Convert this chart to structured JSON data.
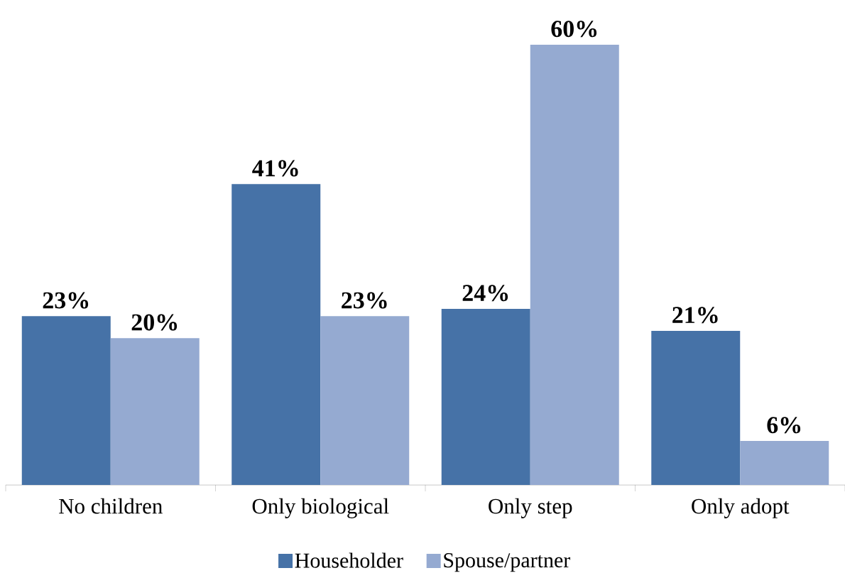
{
  "chart_data": {
    "type": "bar",
    "categories": [
      "No children",
      "Only biological",
      "Only step",
      "Only adopt"
    ],
    "series": [
      {
        "name": "Householder",
        "color": "#4672a7",
        "values": [
          23,
          41,
          24,
          21
        ],
        "value_labels": [
          "23%",
          "41%",
          "24%",
          "21%"
        ]
      },
      {
        "name": "Spouse/partner",
        "color": "#95aad1",
        "values": [
          20,
          23,
          60,
          6
        ],
        "value_labels": [
          "20%",
          "23%",
          "60%",
          "6%"
        ]
      }
    ],
    "legend": "bottom"
  }
}
